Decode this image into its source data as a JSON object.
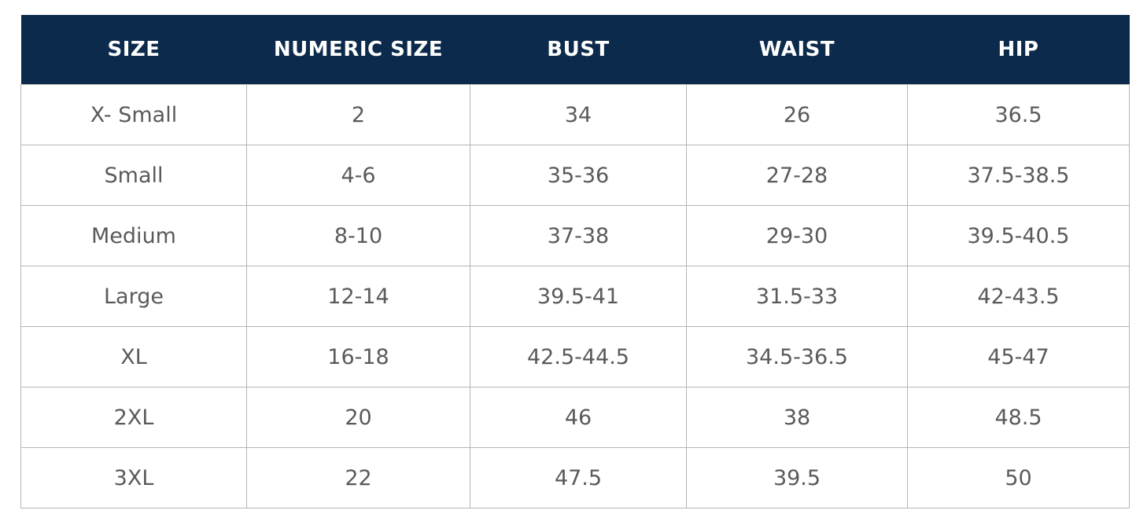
{
  "table": {
    "header": [
      "SIZE",
      "NUMERIC SIZE",
      "BUST",
      "WAIST",
      "HIP"
    ],
    "rows": [
      [
        "X- Small",
        "2",
        "34",
        "26",
        "36.5"
      ],
      [
        "Small",
        "4-6",
        "35-36",
        "27-28",
        "37.5-38.5"
      ],
      [
        "Medium",
        "8-10",
        "37-38",
        "29-30",
        "39.5-40.5"
      ],
      [
        "Large",
        "12-14",
        "39.5-41",
        "31.5-33",
        "42-43.5"
      ],
      [
        "XL",
        "16-18",
        "42.5-44.5",
        "34.5-36.5",
        "45-47"
      ],
      [
        "2XL",
        "20",
        "46",
        "38",
        "48.5"
      ],
      [
        "3XL",
        "22",
        "47.5",
        "39.5",
        "50"
      ]
    ]
  }
}
